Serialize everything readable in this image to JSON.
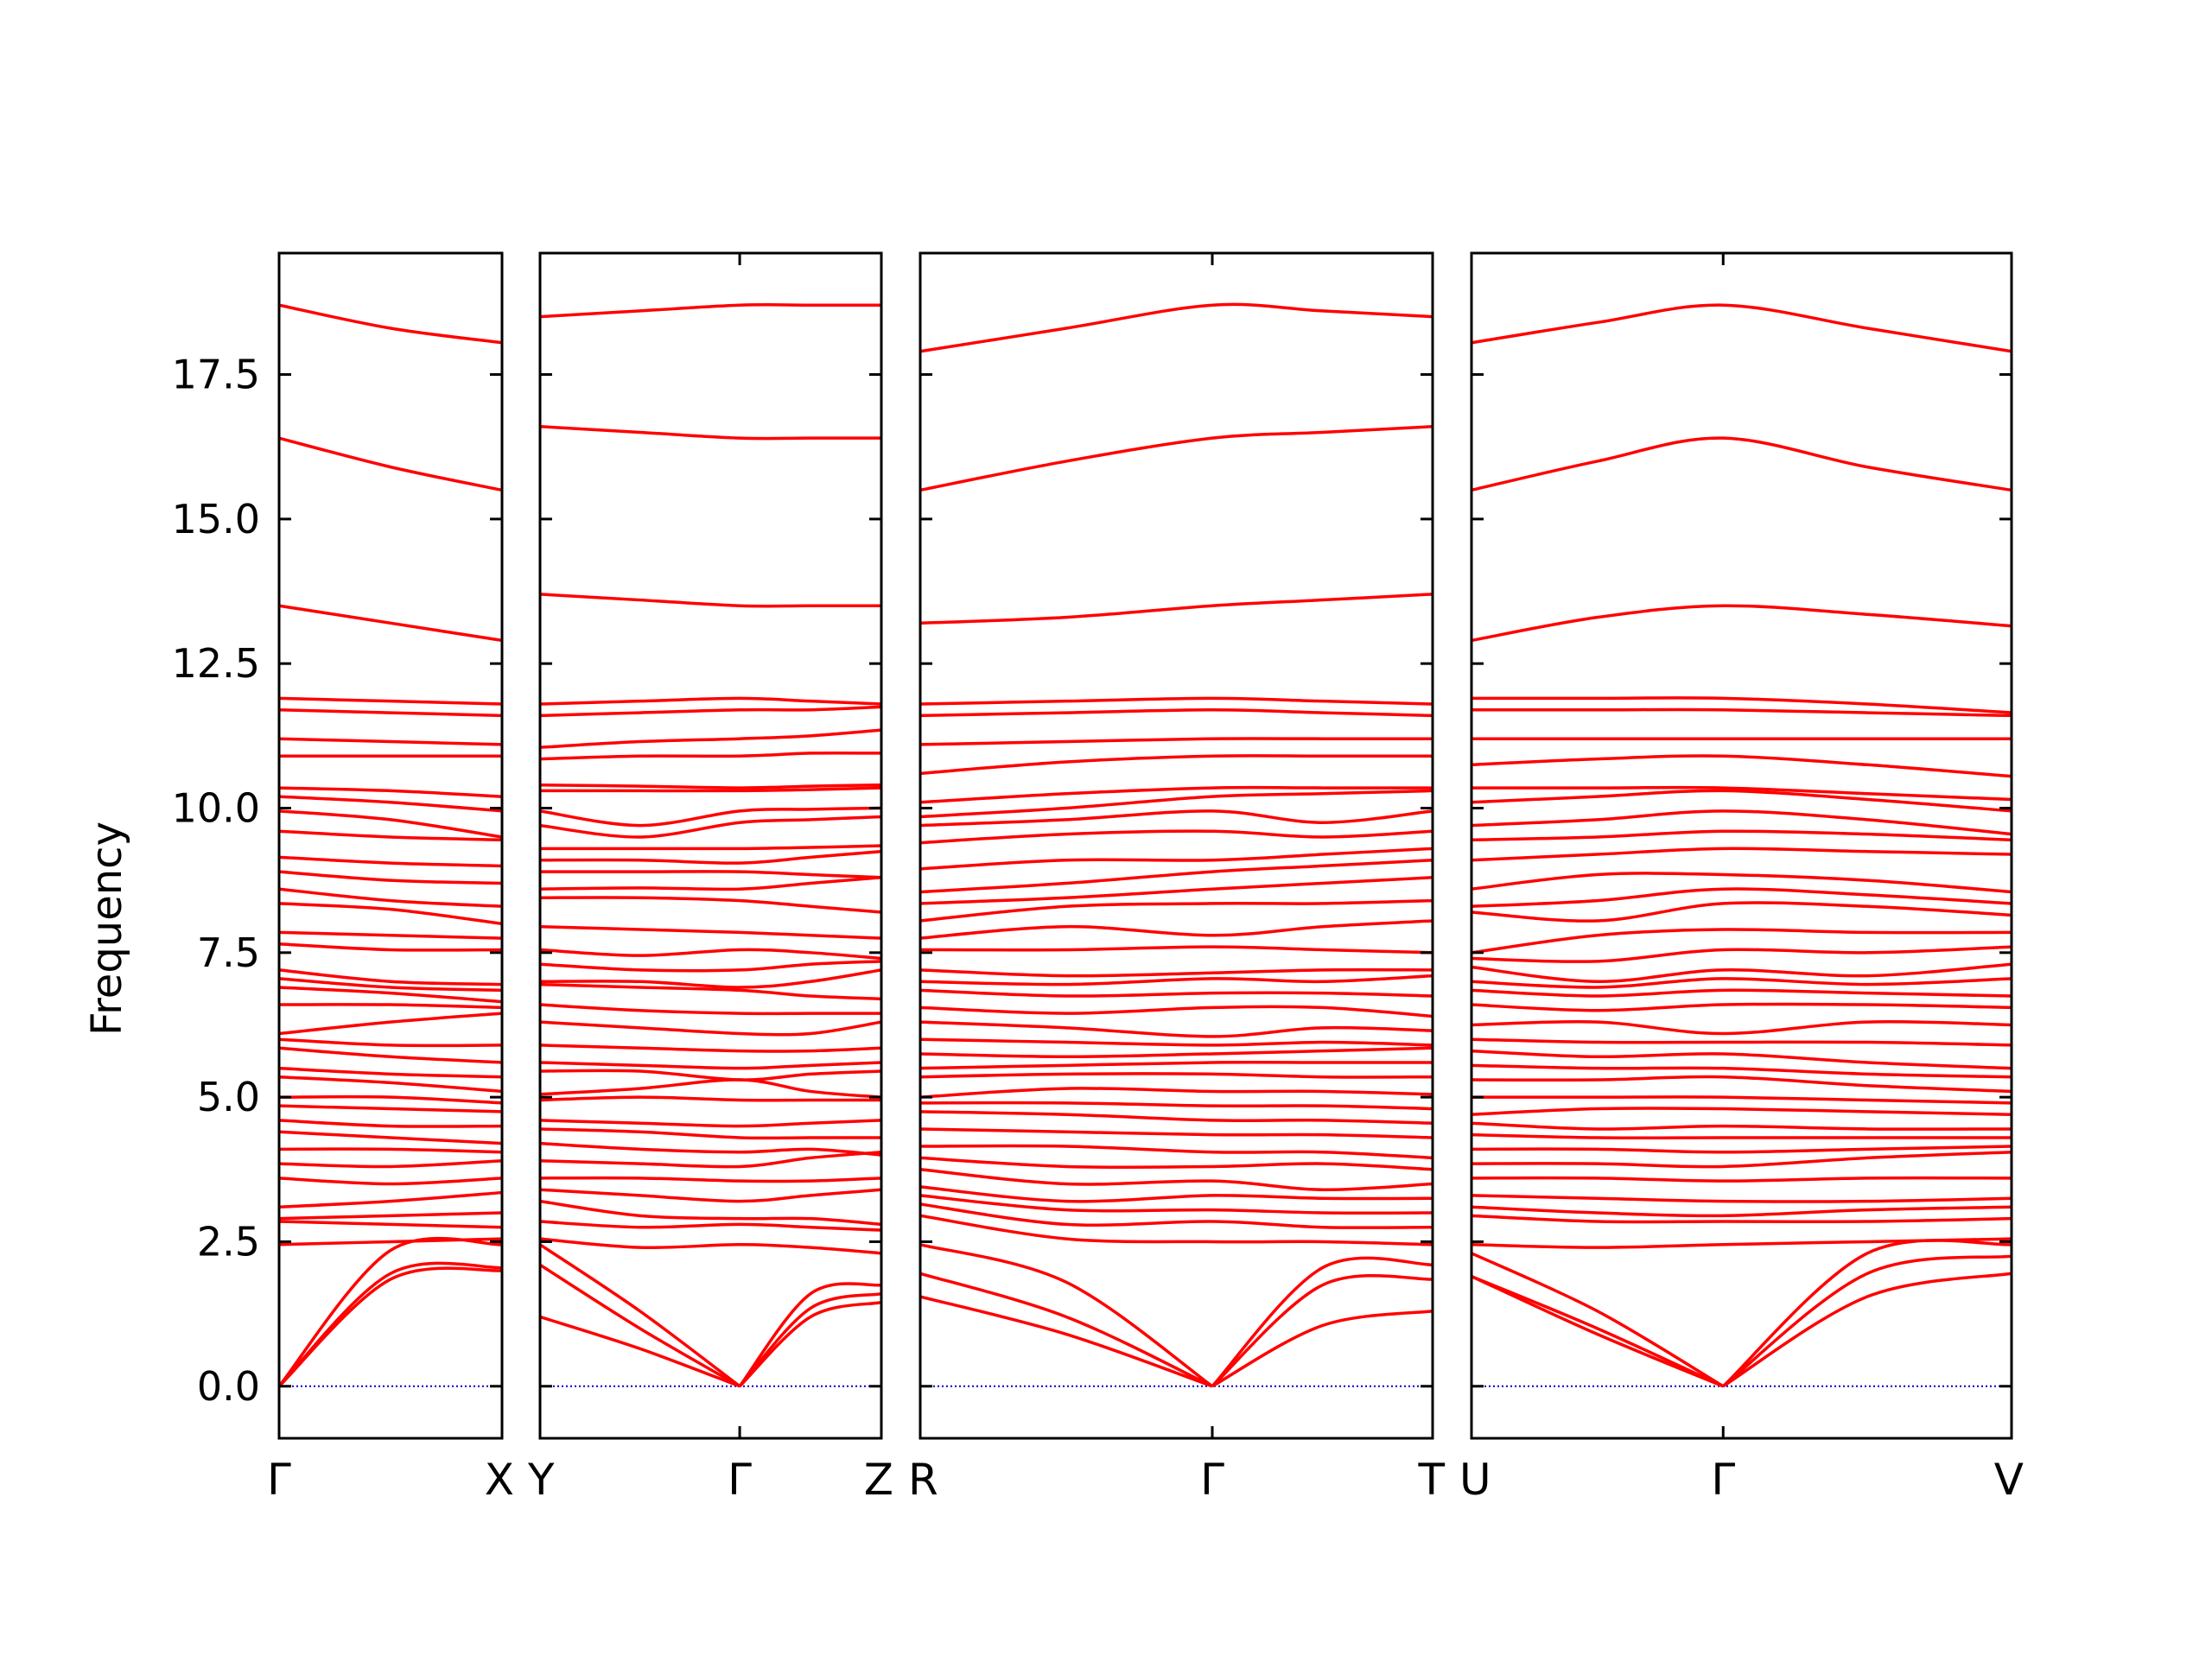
{
  "chart_data": {
    "type": "line",
    "title": "",
    "ylabel": "Frequency",
    "ylim": [
      -0.9,
      19.6
    ],
    "yticks": [
      "0.0",
      "2.5",
      "5.0",
      "7.5",
      "10.0",
      "12.5",
      "15.0",
      "17.5"
    ],
    "ytick_values": [
      0,
      2.5,
      5.0,
      7.5,
      10.0,
      12.5,
      15.0,
      17.5
    ],
    "colors": {
      "band": "#ff0000",
      "zero_line": "#0000cc",
      "axes": "#000000"
    },
    "line_style": {
      "zero_line": "dotted"
    },
    "panels": [
      {
        "path": [
          "Γ",
          "X"
        ],
        "special_points": [
          {
            "label": "Γ",
            "t": 0
          },
          {
            "label": "X",
            "t": 1
          }
        ],
        "acoustic": [
          [
            0,
            2.35,
            2.45
          ],
          [
            0,
            1.95,
            2.05
          ],
          [
            0,
            1.85,
            2.0
          ]
        ],
        "optical": [
          [
            18.7,
            18.3,
            18.05
          ],
          [
            16.4,
            15.9,
            15.5
          ],
          [
            13.5,
            13.2,
            12.9
          ],
          [
            11.9,
            11.85,
            11.8
          ],
          [
            11.7,
            11.65,
            11.6
          ],
          [
            11.2,
            11.15,
            11.1
          ],
          [
            10.9,
            10.9,
            10.9
          ],
          [
            10.35,
            10.3,
            10.2
          ],
          [
            10.2,
            10.1,
            9.95
          ],
          [
            9.95,
            9.8,
            9.5
          ],
          [
            9.6,
            9.5,
            9.45
          ],
          [
            9.15,
            9.05,
            9.0
          ],
          [
            8.9,
            8.75,
            8.7
          ],
          [
            8.6,
            8.4,
            8.3
          ],
          [
            8.35,
            8.25,
            8.0
          ],
          [
            7.85,
            7.8,
            7.75
          ],
          [
            7.65,
            7.55,
            7.55
          ],
          [
            7.2,
            7.0,
            6.95
          ],
          [
            7.05,
            6.9,
            6.85
          ],
          [
            6.9,
            6.8,
            6.65
          ],
          [
            6.6,
            6.6,
            6.55
          ],
          [
            6.1,
            6.3,
            6.45
          ],
          [
            6.0,
            5.9,
            5.9
          ],
          [
            5.85,
            5.7,
            5.6
          ],
          [
            5.5,
            5.4,
            5.35
          ],
          [
            5.35,
            5.25,
            5.1
          ],
          [
            5.0,
            5.0,
            4.9
          ],
          [
            4.85,
            4.8,
            4.75
          ],
          [
            4.6,
            4.5,
            4.5
          ],
          [
            4.4,
            4.3,
            4.2
          ],
          [
            4.1,
            4.1,
            4.05
          ],
          [
            3.85,
            3.8,
            3.9
          ],
          [
            3.6,
            3.5,
            3.6
          ],
          [
            3.1,
            3.2,
            3.35
          ],
          [
            2.9,
            2.95,
            3.0
          ],
          [
            2.85,
            2.8,
            2.75
          ],
          [
            2.45,
            2.5,
            2.55
          ]
        ]
      },
      {
        "path": [
          "Y",
          "Γ",
          "Z"
        ],
        "special_points": [
          {
            "label": "Y",
            "t": 0
          },
          {
            "label": "Γ",
            "t": 0.585
          },
          {
            "label": "Z",
            "t": 1
          }
        ],
        "acoustic": [
          [
            2.45,
            1.3,
            0,
            1.6,
            1.75
          ],
          [
            2.1,
            1.0,
            0,
            1.35,
            1.6
          ],
          [
            1.2,
            0.65,
            0,
            1.2,
            1.45
          ]
        ],
        "optical": [
          [
            18.5,
            18.6,
            18.7,
            18.7,
            18.7
          ],
          [
            16.6,
            16.5,
            16.4,
            16.4,
            16.4
          ],
          [
            13.7,
            13.6,
            13.5,
            13.5,
            13.5
          ],
          [
            11.8,
            11.85,
            11.9,
            11.85,
            11.8
          ],
          [
            11.6,
            11.65,
            11.7,
            11.7,
            11.75
          ],
          [
            11.05,
            11.15,
            11.2,
            11.25,
            11.35
          ],
          [
            10.85,
            10.9,
            10.9,
            10.95,
            10.95
          ],
          [
            10.4,
            10.38,
            10.35,
            10.38,
            10.4
          ],
          [
            10.3,
            10.3,
            10.3,
            10.32,
            10.35
          ],
          [
            9.95,
            9.7,
            9.95,
            9.98,
            10.0
          ],
          [
            9.7,
            9.5,
            9.75,
            9.8,
            9.85
          ],
          [
            9.3,
            9.3,
            9.3,
            9.32,
            9.35
          ],
          [
            9.1,
            9.1,
            9.05,
            9.15,
            9.25
          ],
          [
            8.9,
            8.9,
            8.9,
            8.85,
            8.8
          ],
          [
            8.6,
            8.62,
            8.6,
            8.7,
            8.8
          ],
          [
            8.45,
            8.45,
            8.4,
            8.3,
            8.2
          ],
          [
            7.95,
            7.9,
            7.85,
            7.8,
            7.75
          ],
          [
            7.55,
            7.45,
            7.55,
            7.5,
            7.4
          ],
          [
            7.3,
            7.2,
            7.2,
            7.3,
            7.35
          ],
          [
            7.0,
            7.0,
            6.9,
            7.0,
            7.2
          ],
          [
            6.95,
            6.9,
            6.85,
            6.75,
            6.7
          ],
          [
            6.6,
            6.5,
            6.45,
            6.45,
            6.45
          ],
          [
            6.3,
            6.2,
            6.1,
            6.1,
            6.3
          ],
          [
            5.9,
            5.85,
            5.8,
            5.8,
            5.85
          ],
          [
            5.6,
            5.55,
            5.5,
            5.55,
            5.6
          ],
          [
            5.45,
            5.45,
            5.3,
            5.4,
            5.45
          ],
          [
            5.05,
            5.15,
            5.3,
            5.1,
            5.0
          ],
          [
            4.95,
            5.0,
            4.95,
            4.95,
            4.95
          ],
          [
            4.6,
            4.55,
            4.5,
            4.55,
            4.6
          ],
          [
            4.45,
            4.4,
            4.3,
            4.3,
            4.3
          ],
          [
            4.2,
            4.1,
            4.05,
            4.1,
            4.0
          ],
          [
            3.9,
            3.85,
            3.8,
            3.95,
            4.05
          ],
          [
            3.6,
            3.6,
            3.55,
            3.55,
            3.6
          ],
          [
            3.4,
            3.3,
            3.2,
            3.3,
            3.4
          ],
          [
            3.2,
            2.95,
            2.9,
            2.9,
            2.8
          ],
          [
            2.85,
            2.75,
            2.8,
            2.75,
            2.7
          ],
          [
            2.55,
            2.4,
            2.45,
            2.4,
            2.3
          ]
        ]
      },
      {
        "path": [
          "R",
          "Γ",
          "T"
        ],
        "special_points": [
          {
            "label": "R",
            "t": 0
          },
          {
            "label": "Γ",
            "t": 0.57
          },
          {
            "label": "T",
            "t": 1
          }
        ],
        "acoustic": [
          [
            2.45,
            1.8,
            0,
            2.05,
            2.1
          ],
          [
            1.95,
            1.2,
            0,
            1.75,
            1.85
          ],
          [
            1.55,
            0.9,
            0,
            1.05,
            1.3
          ]
        ],
        "optical": [
          [
            17.9,
            18.3,
            18.7,
            18.6,
            18.5
          ],
          [
            15.5,
            16.0,
            16.4,
            16.5,
            16.6
          ],
          [
            13.2,
            13.3,
            13.5,
            13.6,
            13.7
          ],
          [
            11.8,
            11.85,
            11.9,
            11.85,
            11.8
          ],
          [
            11.6,
            11.65,
            11.7,
            11.65,
            11.6
          ],
          [
            11.1,
            11.15,
            11.2,
            11.2,
            11.2
          ],
          [
            10.6,
            10.8,
            10.9,
            10.9,
            10.9
          ],
          [
            10.1,
            10.25,
            10.35,
            10.35,
            10.35
          ],
          [
            9.85,
            10.0,
            10.2,
            10.25,
            10.3
          ],
          [
            9.7,
            9.8,
            9.95,
            9.75,
            9.95
          ],
          [
            9.4,
            9.55,
            9.6,
            9.5,
            9.6
          ],
          [
            8.95,
            9.1,
            9.1,
            9.2,
            9.3
          ],
          [
            8.55,
            8.7,
            8.9,
            9.0,
            9.1
          ],
          [
            8.35,
            8.45,
            8.6,
            8.7,
            8.8
          ],
          [
            8.05,
            8.3,
            8.35,
            8.35,
            8.4
          ],
          [
            7.75,
            7.95,
            7.8,
            7.95,
            8.05
          ],
          [
            7.55,
            7.55,
            7.6,
            7.55,
            7.5
          ],
          [
            7.2,
            7.1,
            7.15,
            7.2,
            7.2
          ],
          [
            7.0,
            6.95,
            7.05,
            7.0,
            7.1
          ],
          [
            6.85,
            6.75,
            6.8,
            6.8,
            6.75
          ],
          [
            6.55,
            6.45,
            6.55,
            6.55,
            6.4
          ],
          [
            6.3,
            6.2,
            6.05,
            6.2,
            6.15
          ],
          [
            6.0,
            5.95,
            5.9,
            5.95,
            5.9
          ],
          [
            5.75,
            5.7,
            5.75,
            5.8,
            5.85
          ],
          [
            5.5,
            5.55,
            5.6,
            5.6,
            5.6
          ],
          [
            5.35,
            5.4,
            5.4,
            5.35,
            5.35
          ],
          [
            5.0,
            5.15,
            5.1,
            5.1,
            5.05
          ],
          [
            4.9,
            4.9,
            4.85,
            4.85,
            4.8
          ],
          [
            4.75,
            4.7,
            4.6,
            4.6,
            4.55
          ],
          [
            4.45,
            4.4,
            4.35,
            4.35,
            4.3
          ],
          [
            4.15,
            4.15,
            4.05,
            4.05,
            3.95
          ],
          [
            3.95,
            3.8,
            3.8,
            3.85,
            3.75
          ],
          [
            3.75,
            3.5,
            3.55,
            3.4,
            3.5
          ],
          [
            3.45,
            3.2,
            3.3,
            3.25,
            3.25
          ],
          [
            3.3,
            3.05,
            3.05,
            3.0,
            3.0
          ],
          [
            3.15,
            2.8,
            2.85,
            2.75,
            2.75
          ],
          [
            2.95,
            2.55,
            2.5,
            2.5,
            2.45
          ]
        ]
      },
      {
        "path": [
          "U",
          "Γ",
          "V"
        ],
        "special_points": [
          {
            "label": "U",
            "t": 0
          },
          {
            "label": "Γ",
            "t": 0.466
          },
          {
            "label": "V",
            "t": 1
          }
        ],
        "acoustic": [
          [
            2.3,
            1.3,
            0,
            2.3,
            2.45
          ],
          [
            1.9,
            1.0,
            0,
            1.95,
            2.25
          ],
          [
            1.9,
            0.9,
            0,
            1.55,
            1.95
          ]
        ],
        "optical": [
          [
            18.05,
            18.4,
            18.7,
            18.3,
            17.9
          ],
          [
            15.5,
            16.0,
            16.4,
            15.9,
            15.5
          ],
          [
            12.9,
            13.3,
            13.5,
            13.35,
            13.15
          ],
          [
            11.9,
            11.9,
            11.9,
            11.8,
            11.65
          ],
          [
            11.7,
            11.7,
            11.7,
            11.65,
            11.6
          ],
          [
            11.2,
            11.2,
            11.2,
            11.2,
            11.2
          ],
          [
            10.75,
            10.85,
            10.9,
            10.75,
            10.55
          ],
          [
            10.35,
            10.35,
            10.35,
            10.25,
            10.15
          ],
          [
            10.1,
            10.2,
            10.3,
            10.15,
            9.95
          ],
          [
            9.7,
            9.8,
            9.95,
            9.8,
            9.55
          ],
          [
            9.45,
            9.5,
            9.6,
            9.55,
            9.45
          ],
          [
            9.1,
            9.2,
            9.3,
            9.25,
            9.2
          ],
          [
            8.6,
            8.85,
            8.85,
            8.75,
            8.55
          ],
          [
            8.3,
            8.4,
            8.6,
            8.5,
            8.35
          ],
          [
            8.2,
            8.05,
            8.35,
            8.3,
            8.15
          ],
          [
            7.5,
            7.8,
            7.9,
            7.85,
            7.85
          ],
          [
            7.4,
            7.35,
            7.55,
            7.5,
            7.6
          ],
          [
            7.25,
            7.0,
            7.2,
            7.1,
            7.3
          ],
          [
            7.0,
            6.9,
            7.05,
            6.95,
            7.05
          ],
          [
            6.85,
            6.75,
            6.85,
            6.8,
            6.75
          ],
          [
            6.6,
            6.5,
            6.6,
            6.6,
            6.55
          ],
          [
            6.25,
            6.3,
            6.1,
            6.3,
            6.25
          ],
          [
            6.0,
            5.95,
            5.95,
            5.95,
            5.9
          ],
          [
            5.8,
            5.7,
            5.75,
            5.6,
            5.5
          ],
          [
            5.55,
            5.5,
            5.5,
            5.4,
            5.35
          ],
          [
            5.3,
            5.3,
            5.35,
            5.2,
            5.1
          ],
          [
            5.0,
            5.0,
            5.0,
            4.95,
            4.9
          ],
          [
            4.7,
            4.8,
            4.8,
            4.75,
            4.7
          ],
          [
            4.55,
            4.45,
            4.5,
            4.45,
            4.45
          ],
          [
            4.35,
            4.3,
            4.3,
            4.3,
            4.3
          ],
          [
            4.1,
            4.1,
            4.05,
            4.1,
            4.15
          ],
          [
            3.85,
            3.85,
            3.8,
            3.95,
            4.05
          ],
          [
            3.6,
            3.6,
            3.55,
            3.6,
            3.6
          ],
          [
            3.3,
            3.25,
            3.2,
            3.2,
            3.25
          ],
          [
            3.1,
            3.0,
            2.95,
            3.05,
            3.1
          ],
          [
            2.95,
            2.85,
            2.85,
            2.85,
            2.9
          ],
          [
            2.45,
            2.4,
            2.45,
            2.5,
            2.55
          ]
        ]
      }
    ]
  }
}
